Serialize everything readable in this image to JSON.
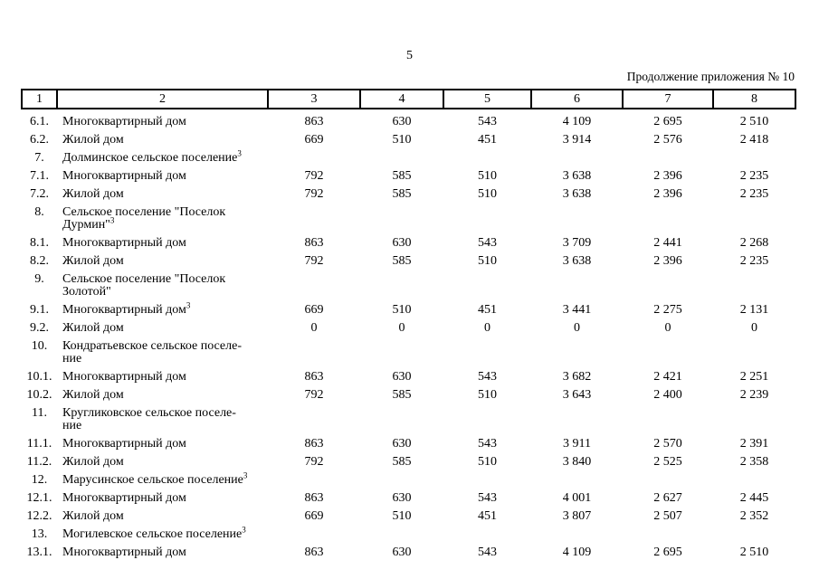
{
  "page": {
    "number": "5",
    "caption": "Продолжение приложения № 10"
  },
  "table": {
    "columns": [
      "1",
      "2",
      "3",
      "4",
      "5",
      "6",
      "7",
      "8"
    ],
    "rows": [
      {
        "num": "6.1.",
        "label": "Многоквартирный дом",
        "sup": "",
        "section": false,
        "values": [
          "863",
          "630",
          "543",
          "4 109",
          "2 695",
          "2 510"
        ]
      },
      {
        "num": "6.2.",
        "label": "Жилой дом",
        "sup": "",
        "section": false,
        "values": [
          "669",
          "510",
          "451",
          "3 914",
          "2 576",
          "2 418"
        ]
      },
      {
        "num": "7.",
        "label": "Долминское сельское поселение",
        "sup": "3",
        "section": true,
        "values": []
      },
      {
        "num": "7.1.",
        "label": "Многоквартирный дом",
        "sup": "",
        "section": false,
        "values": [
          "792",
          "585",
          "510",
          "3 638",
          "2 396",
          "2 235"
        ]
      },
      {
        "num": "7.2.",
        "label": "Жилой дом",
        "sup": "",
        "section": false,
        "values": [
          "792",
          "585",
          "510",
          "3 638",
          "2 396",
          "2 235"
        ]
      },
      {
        "num": "8.",
        "label": "Сельское поселение \"Поселок\nДурмин\"",
        "sup": "3",
        "section": true,
        "values": []
      },
      {
        "num": "8.1.",
        "label": "Многоквартирный дом",
        "sup": "",
        "section": false,
        "values": [
          "863",
          "630",
          "543",
          "3 709",
          "2 441",
          "2 268"
        ]
      },
      {
        "num": "8.2.",
        "label": "Жилой дом",
        "sup": "",
        "section": false,
        "values": [
          "792",
          "585",
          "510",
          "3 638",
          "2 396",
          "2 235"
        ]
      },
      {
        "num": "9.",
        "label": "Сельское поселение \"Поселок\nЗолотой\"",
        "sup": "",
        "section": true,
        "values": []
      },
      {
        "num": "9.1.",
        "label": "Многоквартирный дом",
        "sup": "3",
        "section": false,
        "values": [
          "669",
          "510",
          "451",
          "3 441",
          "2 275",
          "2 131"
        ]
      },
      {
        "num": "9.2.",
        "label": "Жилой дом",
        "sup": "",
        "section": false,
        "values": [
          "0",
          "0",
          "0",
          "0",
          "0",
          "0"
        ]
      },
      {
        "num": "10.",
        "label": "Кондратьевское сельское поселе-\nние",
        "sup": "",
        "section": true,
        "values": []
      },
      {
        "num": "10.1.",
        "label": "Многоквартирный дом",
        "sup": "",
        "section": false,
        "values": [
          "863",
          "630",
          "543",
          "3 682",
          "2 421",
          "2 251"
        ]
      },
      {
        "num": "10.2.",
        "label": "Жилой дом",
        "sup": "",
        "section": false,
        "values": [
          "792",
          "585",
          "510",
          "3 643",
          "2 400",
          "2 239"
        ]
      },
      {
        "num": "11.",
        "label": "Кругликовское сельское поселе-\nние",
        "sup": "",
        "section": true,
        "values": []
      },
      {
        "num": "11.1.",
        "label": "Многоквартирный дом",
        "sup": "",
        "section": false,
        "values": [
          "863",
          "630",
          "543",
          "3 911",
          "2 570",
          "2 391"
        ]
      },
      {
        "num": "11.2.",
        "label": "Жилой дом",
        "sup": "",
        "section": false,
        "values": [
          "792",
          "585",
          "510",
          "3 840",
          "2 525",
          "2 358"
        ]
      },
      {
        "num": "12.",
        "label": "Марусинское сельское поселение",
        "sup": "3",
        "section": true,
        "values": []
      },
      {
        "num": "12.1.",
        "label": "Многоквартирный дом",
        "sup": "",
        "section": false,
        "values": [
          "863",
          "630",
          "543",
          "4 001",
          "2 627",
          "2 445"
        ]
      },
      {
        "num": "12.2.",
        "label": "Жилой дом",
        "sup": "",
        "section": false,
        "values": [
          "669",
          "510",
          "451",
          "3 807",
          "2 507",
          "2 352"
        ]
      },
      {
        "num": "13.",
        "label": "Могилевское сельское поселение",
        "sup": "3",
        "section": true,
        "values": []
      },
      {
        "num": "13.1.",
        "label": "Многоквартирный дом",
        "sup": "",
        "section": false,
        "values": [
          "863",
          "630",
          "543",
          "4 109",
          "2 695",
          "2 510"
        ]
      }
    ]
  }
}
